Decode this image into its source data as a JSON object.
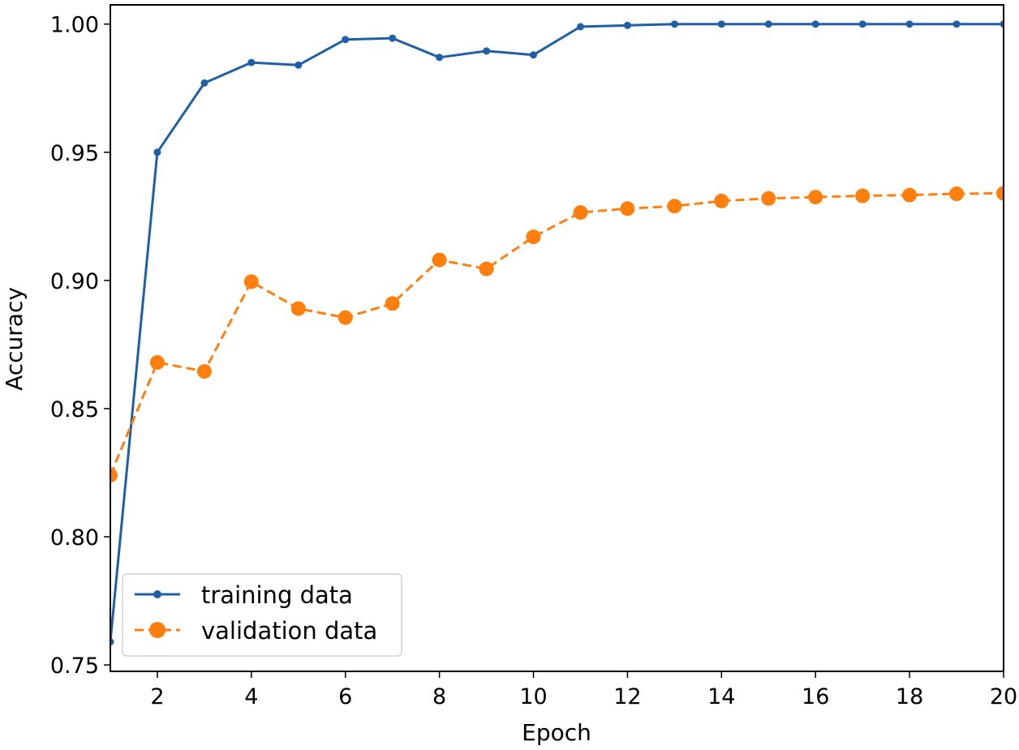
{
  "chart_data": {
    "type": "line",
    "title": "",
    "xlabel": "Epoch",
    "ylabel": "Accuracy",
    "xlim": [
      1,
      20
    ],
    "ylim": [
      0.7475,
      1.0075
    ],
    "x_ticks": [
      2,
      4,
      6,
      8,
      10,
      12,
      14,
      16,
      18,
      20
    ],
    "y_ticks": [
      "0.75",
      "0.80",
      "0.85",
      "0.90",
      "0.95",
      "1.00"
    ],
    "grid": false,
    "legend_position": "lower-left",
    "x": [
      1,
      2,
      3,
      4,
      5,
      6,
      7,
      8,
      9,
      10,
      11,
      12,
      13,
      14,
      15,
      16,
      17,
      18,
      19,
      20
    ],
    "series": [
      {
        "name": "training data",
        "color": "#1f5fa6",
        "line_style": "solid",
        "marker": "small-circle",
        "values": [
          0.759,
          0.95,
          0.977,
          0.985,
          0.984,
          0.994,
          0.9945,
          0.987,
          0.9895,
          0.988,
          0.999,
          0.9995,
          1.0,
          1.0,
          1.0,
          1.0,
          1.0,
          1.0,
          1.0,
          1.0
        ]
      },
      {
        "name": "validation data",
        "color": "#ff7f0e",
        "line_style": "dashed",
        "marker": "large-circle",
        "values": [
          0.824,
          0.868,
          0.8645,
          0.8995,
          0.889,
          0.8855,
          0.891,
          0.908,
          0.9045,
          0.917,
          0.9265,
          0.928,
          0.929,
          0.931,
          0.932,
          0.9325,
          0.933,
          0.9333,
          0.9338,
          0.934
        ]
      }
    ]
  }
}
